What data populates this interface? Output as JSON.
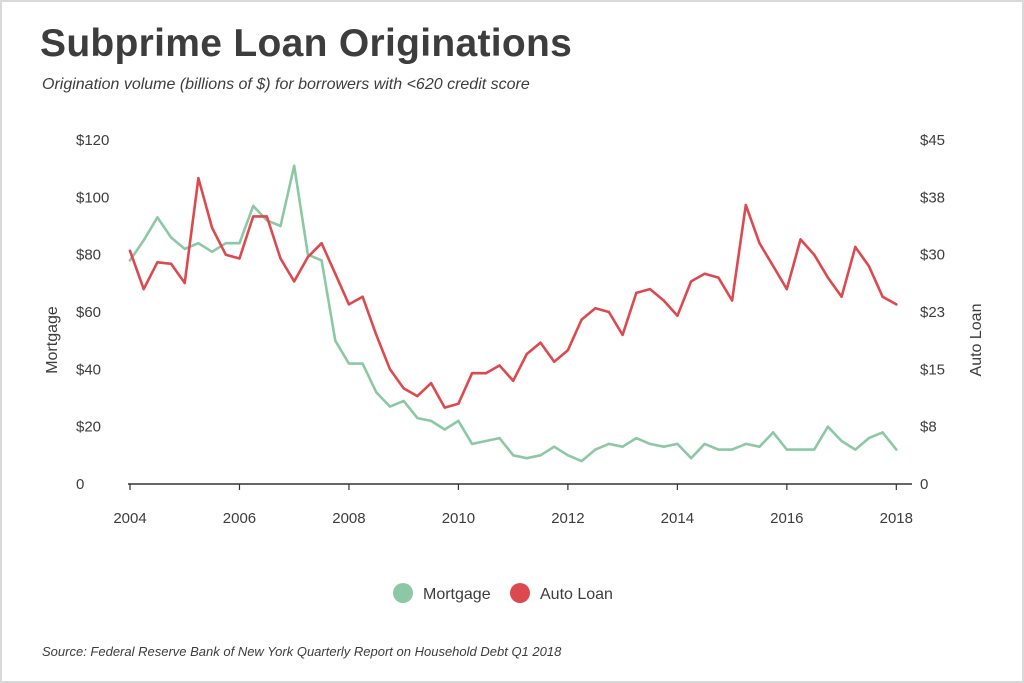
{
  "title": "Subprime Loan Originations",
  "subtitle": "Origination volume (billions of $) for borrowers with <620 credit score",
  "source": "Source: Federal Reserve Bank of New York Quarterly Report on Household Debt Q1 2018",
  "colors": {
    "mortgage": "#8dc8a6",
    "auto": "#dc4a4f",
    "axis": "#333333",
    "text": "#3d3d3d"
  },
  "chart_data": {
    "type": "line",
    "x_start": 2004.0,
    "x_step": 0.25,
    "xlim": [
      2004,
      2018.25
    ],
    "x_ticks": [
      "2004",
      "2006",
      "2008",
      "2010",
      "2012",
      "2014",
      "2016",
      "2018"
    ],
    "y_left": {
      "label": "Mortgage",
      "ylim": [
        0,
        120
      ],
      "ticks": [
        "0",
        "$20",
        "$40",
        "$60",
        "$80",
        "$100",
        "$120"
      ]
    },
    "y_right": {
      "label": "Auto Loan",
      "ylim": [
        0,
        45
      ],
      "ticks": [
        "0",
        "$8",
        "$15",
        "$23",
        "$30",
        "$38",
        "$45"
      ]
    },
    "legend": "bottom-center",
    "series": [
      {
        "name": "Mortgage",
        "axis": "left",
        "values": [
          78,
          85,
          93,
          86,
          82,
          84,
          81,
          84,
          84,
          97,
          92,
          90,
          111,
          80,
          78,
          50,
          42,
          42,
          32,
          27,
          29,
          23,
          22,
          19,
          22,
          14,
          15,
          16,
          10,
          9,
          10,
          13,
          10,
          8,
          12,
          14,
          13,
          16,
          14,
          13,
          14,
          9,
          14,
          12,
          12,
          14,
          13,
          18,
          12,
          12,
          12,
          20,
          15,
          12,
          16,
          18,
          12
        ]
      },
      {
        "name": "Auto Loan",
        "axis": "right",
        "values": [
          30.5,
          25.5,
          29.0,
          28.8,
          26.3,
          40.0,
          33.5,
          30.0,
          29.5,
          35.0,
          35.0,
          29.5,
          26.5,
          29.7,
          31.5,
          27.5,
          23.5,
          24.5,
          19.5,
          15.0,
          12.5,
          11.5,
          13.2,
          10.0,
          10.5,
          14.5,
          14.5,
          15.5,
          13.5,
          17.0,
          18.5,
          16.0,
          17.5,
          21.5,
          23.0,
          22.5,
          19.5,
          25.0,
          25.5,
          24.0,
          22.0,
          26.5,
          27.5,
          27.0,
          24.0,
          36.5,
          31.5,
          28.5,
          25.5,
          32.0,
          30.0,
          27.0,
          24.5,
          31.0,
          28.5,
          24.5,
          23.5
        ]
      }
    ]
  }
}
